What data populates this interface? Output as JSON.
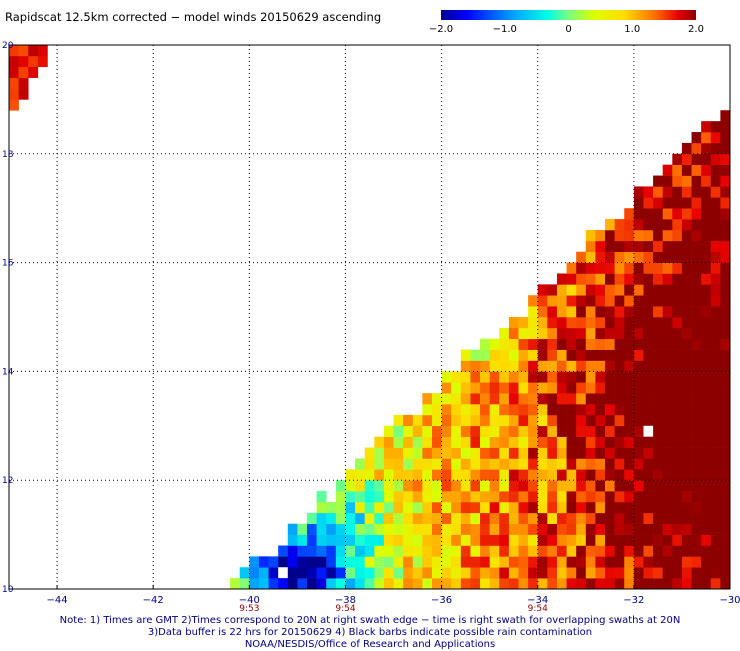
{
  "title": "Rapidscat 12.5km corrected − model winds 20150629 ascending",
  "colorbar": {
    "ticks": [
      "−2.0",
      "−1.0",
      "0",
      "1.0",
      "2.0"
    ],
    "min": -2.0,
    "max": 2.0
  },
  "chart_data": {
    "type": "heatmap",
    "title": "Rapidscat 12.5km corrected − model winds 20150629 ascending",
    "xlabel": "",
    "ylabel": "",
    "xlim": [
      -45,
      -30
    ],
    "ylim": [
      10,
      20
    ],
    "x_ticks": [
      "−44",
      "−42",
      "−40",
      "−38",
      "−36",
      "−34",
      "−32",
      "−30"
    ],
    "y_ticks": [
      "20",
      "18",
      "16",
      "14",
      "12",
      "10"
    ],
    "value_range": [
      -2.0,
      2.0
    ],
    "grid": "dotted",
    "swath_times": [
      {
        "lon": -40,
        "label": "9:53"
      },
      {
        "lon": -38,
        "label": "9:54"
      },
      {
        "lon": -34,
        "label": "9:54"
      }
    ]
  },
  "notes": [
    "Note: 1) Times are GMT 2)Times correspond to 20N at right swath edge − time is right swath for overlapping swaths at 20N",
    "3)Data buffer is 22 hrs for 20150629 4) Black barbs indicate possible rain contamination",
    "NOAA/NESDIS/Office of Research and Applications"
  ],
  "colors": {
    "frame": "#000000",
    "time_label": "#8b0000",
    "note_text": "#000080"
  }
}
